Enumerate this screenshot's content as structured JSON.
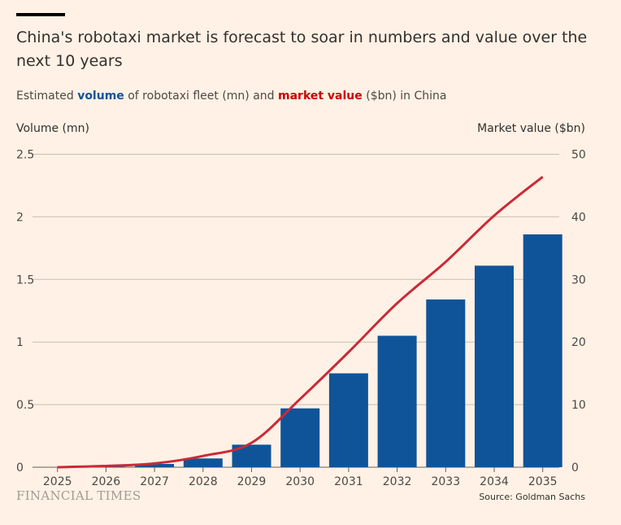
{
  "header": {
    "title": "China's robotaxi market is forecast to soar in numbers and value over the next 10 years",
    "subtitle_pre": "Estimated ",
    "subtitle_volume": "volume",
    "subtitle_mid": " of robotaxi fleet (mn) and ",
    "subtitle_value": "market value",
    "subtitle_post": " ($bn) in China"
  },
  "footer": {
    "logo": "FINANCIAL TIMES",
    "source": "Source: Goldman Sachs"
  },
  "chart_data": {
    "type": "bar+line",
    "categories": [
      "2025",
      "2026",
      "2027",
      "2028",
      "2029",
      "2030",
      "2031",
      "2032",
      "2033",
      "2034",
      "2035"
    ],
    "series": [
      {
        "name": "volume",
        "type": "bar",
        "axis": "left",
        "color": "#0f5499",
        "values": [
          0,
          0.005,
          0.026,
          0.07,
          0.18,
          0.47,
          0.75,
          1.05,
          1.34,
          1.61,
          1.86
        ]
      },
      {
        "name": "market value",
        "type": "line",
        "axis": "right",
        "color": "#cc2936",
        "values": [
          0,
          0.2,
          0.6,
          1.8,
          3.9,
          10.9,
          18.4,
          26.2,
          32.8,
          40.2,
          46.4
        ]
      }
    ],
    "ylabel_left": "Volume (mn)",
    "ylabel_right": "Market value ($bn)",
    "ylim_left": [
      0,
      2.5
    ],
    "ylim_right": [
      0,
      50
    ],
    "yticks_left": [
      "0",
      "0.5",
      "1",
      "1.5",
      "2",
      "2.5"
    ],
    "yticks_right": [
      "0",
      "10",
      "20",
      "30",
      "40",
      "50"
    ],
    "grid": true
  }
}
